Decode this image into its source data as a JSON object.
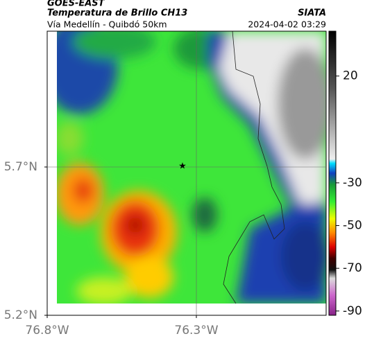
{
  "header": {
    "product": "GOES-EAST",
    "title": "Temperatura de Brillo CH13",
    "subtitle": "Vía Medellín - Quibdó 50km",
    "source": "SIATA",
    "timestamp": "2024-04-02 03:29"
  },
  "map": {
    "xlim": [
      -76.8,
      -75.865
    ],
    "ylim": [
      5.2,
      6.158
    ],
    "xticks": [
      {
        "value": -76.8,
        "label": "76.8°W"
      },
      {
        "value": -76.3,
        "label": "76.3°W"
      }
    ],
    "yticks": [
      {
        "value": 5.2,
        "label": "5.2°N"
      },
      {
        "value": 5.7,
        "label": "5.7°N"
      }
    ]
  },
  "colorbar": {
    "lim": [
      -92,
      41
    ],
    "ticks": [
      20,
      -30,
      -50,
      -70,
      -90
    ]
  }
}
